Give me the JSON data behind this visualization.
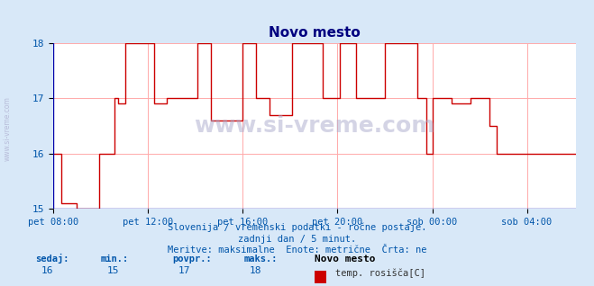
{
  "title": "Novo mesto",
  "title_color": "#000080",
  "bg_color": "#d8e8f8",
  "plot_bg_color": "#ffffff",
  "line_color": "#cc0000",
  "grid_color": "#ffaaaa",
  "axis_color": "#0000aa",
  "text_color": "#0055aa",
  "xlabel_color": "#555555",
  "ylim": [
    15,
    18
  ],
  "ytick_step": 1,
  "xticks_labels": [
    "pet 08:00",
    "pet 12:00",
    "pet 16:00",
    "pet 20:00",
    "sob 00:00",
    "sob 04:00"
  ],
  "xticks_pos": [
    0.0,
    0.25,
    0.5,
    0.75,
    1.0,
    1.25
  ],
  "subtitle_lines": [
    "Slovenija / vremenski podatki - ročne postaje.",
    "zadnji dan / 5 minut.",
    "Meritve: maksimalne  Enote: metrične  Črta: ne"
  ],
  "footer_labels": [
    "sedaj:",
    "min.:",
    "povpr.:",
    "maks.:"
  ],
  "footer_values": [
    "16",
    "15",
    "17",
    "18"
  ],
  "footer_series_name": "Novo mesto",
  "footer_series_label": "temp. rosišča[C]",
  "footer_series_color": "#cc0000",
  "watermark_text": "www.si-vreme.com",
  "side_text": "www.si-vreme.com",
  "x_data": [
    0,
    0.02,
    0.02,
    0.06,
    0.06,
    0.12,
    0.12,
    0.16,
    0.16,
    0.17,
    0.17,
    0.19,
    0.19,
    0.265,
    0.265,
    0.3,
    0.3,
    0.38,
    0.38,
    0.415,
    0.415,
    0.5,
    0.5,
    0.535,
    0.535,
    0.57,
    0.57,
    0.63,
    0.63,
    0.71,
    0.71,
    0.755,
    0.755,
    0.8,
    0.8,
    0.875,
    0.875,
    0.96,
    0.96,
    0.985,
    0.985,
    1.0,
    1.0,
    1.05,
    1.05,
    1.1,
    1.1,
    1.15,
    1.15,
    1.17,
    1.17,
    1.22,
    1.22,
    1.28,
    1.28,
    1.5
  ],
  "y_data": [
    16,
    16,
    15.1,
    15.1,
    15,
    15,
    16,
    16,
    17,
    17,
    16.9,
    16.9,
    18,
    18,
    16.9,
    16.9,
    17,
    17,
    18,
    18,
    16.6,
    16.6,
    18,
    18,
    17,
    17,
    16.7,
    16.7,
    18,
    18,
    17,
    17,
    18,
    18,
    17,
    17,
    18,
    18,
    17,
    17,
    16,
    16,
    17,
    17,
    16.9,
    16.9,
    17,
    17,
    16.5,
    16.5,
    16,
    16,
    16,
    16,
    16,
    16
  ]
}
